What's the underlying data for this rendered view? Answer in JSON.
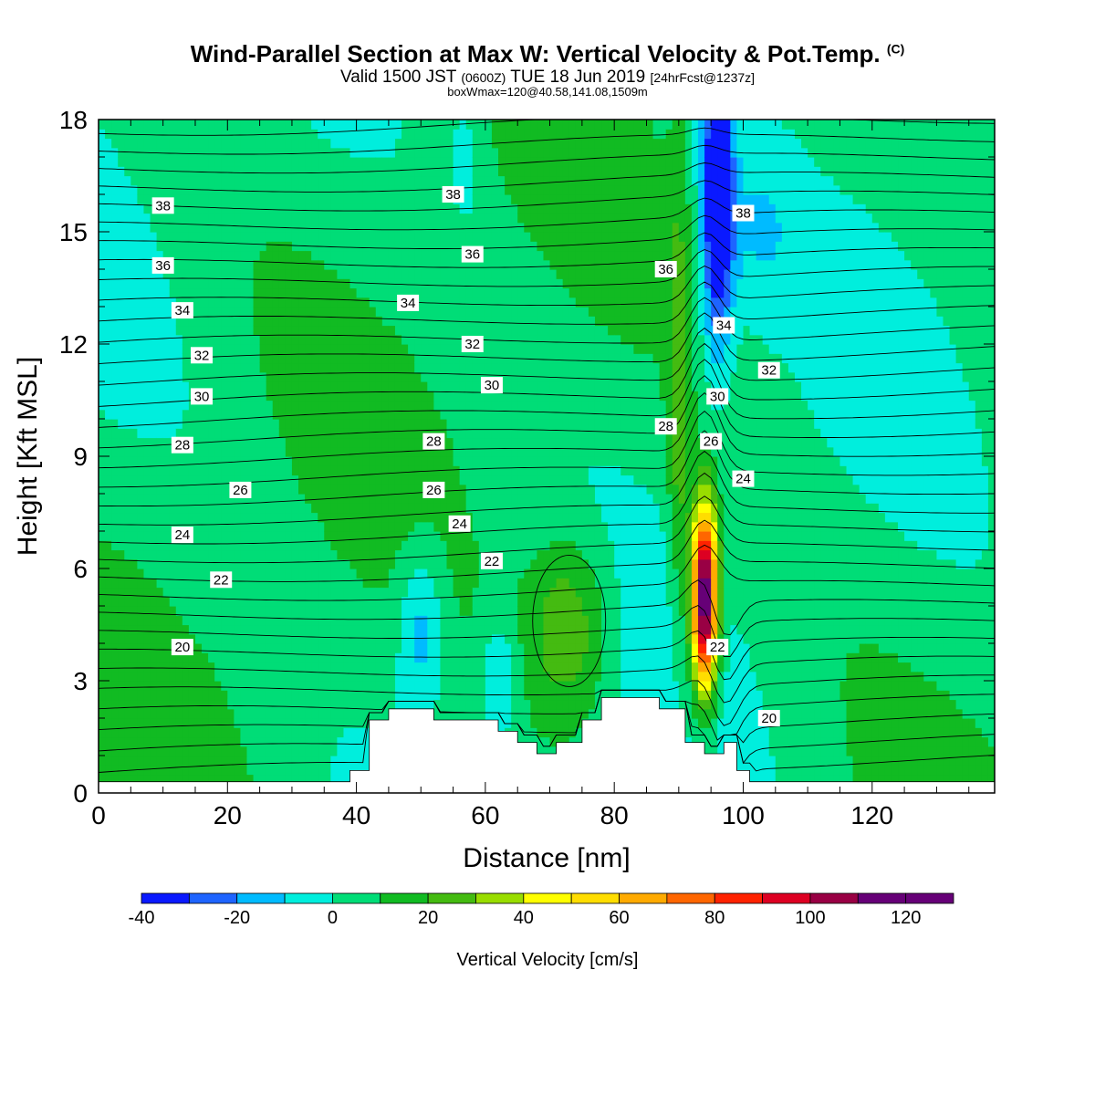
{
  "header": {
    "title": "Wind-Parallel Section at Max W: Vertical Velocity & Pot.Temp.",
    "copyright": "(C)",
    "valid_main": "Valid 1500 JST",
    "valid_utc": "(0600Z)",
    "valid_date": "TUE 18 Jun 2019",
    "forecast": "[24hrFcst@1237z]",
    "box_info": "boxWmax=120@40.58,141.08,1509m"
  },
  "chart_data": {
    "type": "heatmap",
    "xlabel": "Distance [nm]",
    "ylabel": "Height [Kft MSL]",
    "xlim": [
      0,
      139
    ],
    "ylim": [
      0,
      18
    ],
    "x_ticks": [
      "0",
      "20",
      "40",
      "60",
      "80",
      "100",
      "120"
    ],
    "y_ticks": [
      "0",
      "3",
      "6",
      "9",
      "12",
      "15",
      "18"
    ],
    "colorbar": {
      "label": "Vertical Velocity [cm/s]",
      "tick_labels": [
        "-40",
        "-20",
        "0",
        "20",
        "40",
        "60",
        "80",
        "100",
        "120"
      ],
      "levels": [
        -40,
        -30,
        -20,
        -10,
        0,
        10,
        20,
        30,
        40,
        50,
        60,
        70,
        80,
        90,
        100,
        110,
        120,
        130
      ],
      "colors": [
        "#0a19ff",
        "#1e64ff",
        "#00bbff",
        "#00eedd",
        "#00dd77",
        "#11bb22",
        "#44bb11",
        "#99dd00",
        "#ffff00",
        "#ffdd00",
        "#ffaa00",
        "#ff6600",
        "#ff2200",
        "#dd0022",
        "#990044",
        "#660077",
        "#660077"
      ]
    },
    "terrain": [
      [
        0,
        0.3
      ],
      [
        39,
        0.3
      ],
      [
        39,
        0.6
      ],
      [
        42,
        0.6
      ],
      [
        42,
        1.95
      ],
      [
        45,
        1.95
      ],
      [
        45,
        2.25
      ],
      [
        52,
        2.25
      ],
      [
        52,
        1.95
      ],
      [
        62,
        1.95
      ],
      [
        62,
        1.65
      ],
      [
        65,
        1.65
      ],
      [
        65,
        1.35
      ],
      [
        68,
        1.35
      ],
      [
        68,
        1.05
      ],
      [
        71,
        1.05
      ],
      [
        71,
        1.35
      ],
      [
        75,
        1.35
      ],
      [
        75,
        1.95
      ],
      [
        78,
        1.95
      ],
      [
        78,
        2.55
      ],
      [
        87,
        2.55
      ],
      [
        87,
        2.25
      ],
      [
        91,
        2.25
      ],
      [
        91,
        1.35
      ],
      [
        94,
        1.35
      ],
      [
        94,
        1.05
      ],
      [
        97,
        1.05
      ],
      [
        97,
        1.35
      ],
      [
        99,
        1.35
      ],
      [
        99,
        0.6
      ],
      [
        101,
        0.6
      ],
      [
        101,
        0.3
      ],
      [
        139,
        0.3
      ]
    ],
    "theta_contours": [
      {
        "label": "38",
        "label_positions": [
          [
            10,
            15.7
          ],
          [
            55,
            16.0
          ],
          [
            100,
            15.5
          ]
        ]
      },
      {
        "label": "36",
        "label_positions": [
          [
            10,
            14.1
          ],
          [
            58,
            14.4
          ],
          [
            88,
            14.0
          ]
        ]
      },
      {
        "label": "34",
        "label_positions": [
          [
            13,
            12.9
          ],
          [
            48,
            13.1
          ],
          [
            97,
            12.5
          ]
        ]
      },
      {
        "label": "32",
        "label_positions": [
          [
            16,
            11.7
          ],
          [
            58,
            12.0
          ],
          [
            104,
            11.3
          ]
        ]
      },
      {
        "label": "30",
        "label_positions": [
          [
            16,
            10.6
          ],
          [
            61,
            10.9
          ],
          [
            96,
            10.6
          ]
        ]
      },
      {
        "label": "28",
        "label_positions": [
          [
            13,
            9.3
          ],
          [
            52,
            9.4
          ],
          [
            88,
            9.8
          ]
        ]
      },
      {
        "label": "26",
        "label_positions": [
          [
            22,
            8.1
          ],
          [
            52,
            8.1
          ],
          [
            95,
            9.4
          ]
        ]
      },
      {
        "label": "24",
        "label_positions": [
          [
            13,
            6.9
          ],
          [
            56,
            7.2
          ],
          [
            100,
            8.4
          ]
        ]
      },
      {
        "label": "22",
        "label_positions": [
          [
            19,
            5.7
          ],
          [
            61,
            6.2
          ],
          [
            96,
            3.9
          ]
        ]
      },
      {
        "label": "20",
        "label_positions": [
          [
            13,
            3.9
          ],
          [
            104,
            2.0
          ]
        ]
      }
    ],
    "w_features": [
      {
        "kind": "updraft",
        "center_nm": 94,
        "center_kft": 5.5,
        "w_max_cm_s": 120
      },
      {
        "kind": "downdraft",
        "center_nm": 96,
        "center_kft": 16.5,
        "w_min_cm_s": -40
      },
      {
        "kind": "updraft",
        "center_nm": 73,
        "center_kft": 4.5,
        "w_max_cm_s": 30
      }
    ]
  }
}
